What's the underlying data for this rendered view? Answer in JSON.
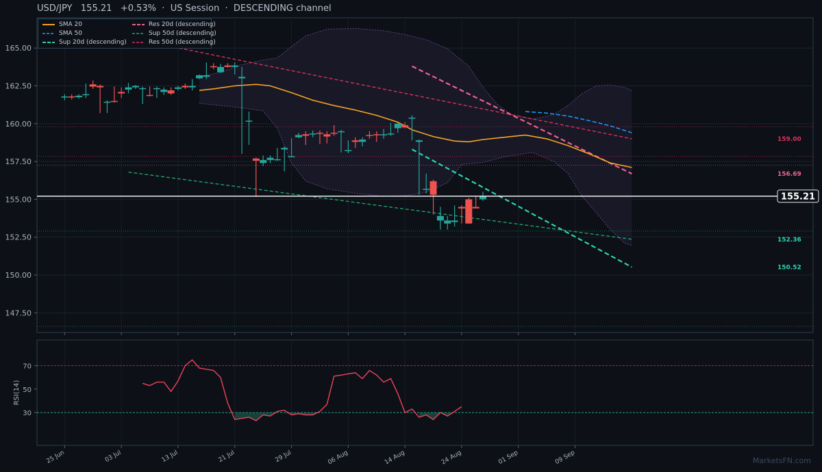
{
  "header": {
    "symbol": "USD/JPY",
    "price": "155.21",
    "change": "+0.53%",
    "session": "US Session",
    "channel": "DESCENDING channel"
  },
  "watermark": "MarketsFN.com",
  "colors": {
    "up": "#26a69a",
    "down": "#ef5350",
    "sma20": "#f5a623",
    "sma50": "#2196f3",
    "sup20": "#2ad4b0",
    "res20": "#f06292",
    "sup50": "#22a06b",
    "res50": "#d8325a",
    "rsi": "#f0435a"
  },
  "legend": [
    {
      "label": "SMA 20",
      "color": "#f5a623",
      "style": "solid"
    },
    {
      "label": "SMA 50",
      "color": "#2196f3",
      "style": "dashed"
    },
    {
      "label": "Sup 20d (descending)",
      "color": "#2ad4b0",
      "style": "dashed"
    },
    {
      "label": "Res 20d (descending)",
      "color": "#f06292",
      "style": "dashed"
    },
    {
      "label": "Sup 50d (descending)",
      "color": "#22a06b",
      "style": "dashed"
    },
    {
      "label": "Res 50d (descending)",
      "color": "#d8325a",
      "style": "dashed"
    }
  ],
  "chart_data": {
    "type": "candlestick",
    "x_start": "2024-06-24",
    "x_ticks": [
      "25 Jun",
      "03 Jul",
      "13 Jul",
      "21 Jul",
      "29 Jul",
      "06 Aug",
      "14 Aug",
      "24 Aug",
      "01 Sep",
      "09 Sep"
    ],
    "y_ticks": [
      "147.50",
      "150.00",
      "152.50",
      "155.00",
      "157.50",
      "160.00",
      "162.50",
      "165.00"
    ],
    "ylim": [
      146.2,
      167.0
    ],
    "candles": [
      {
        "x": "2024-06-25",
        "o": 161.75,
        "h": 161.95,
        "l": 161.55,
        "c": 161.8
      },
      {
        "x": "2024-06-26",
        "o": 161.8,
        "h": 161.95,
        "l": 161.6,
        "c": 161.75
      },
      {
        "x": "2024-06-27",
        "o": 161.75,
        "h": 161.95,
        "l": 161.65,
        "c": 161.85
      },
      {
        "x": "2024-06-28",
        "o": 161.9,
        "h": 162.65,
        "l": 161.7,
        "c": 161.95
      },
      {
        "x": "2024-06-29",
        "o": 162.6,
        "h": 162.85,
        "l": 162.3,
        "c": 162.45
      },
      {
        "x": "2024-06-30",
        "o": 162.5,
        "h": 162.6,
        "l": 160.7,
        "c": 162.4
      },
      {
        "x": "2024-07-01",
        "o": 161.4,
        "h": 161.55,
        "l": 160.7,
        "c": 161.45
      },
      {
        "x": "2024-07-02",
        "o": 161.5,
        "h": 162.45,
        "l": 161.4,
        "c": 161.45
      },
      {
        "x": "2024-07-03",
        "o": 162.1,
        "h": 162.4,
        "l": 161.7,
        "c": 162.0
      },
      {
        "x": "2024-07-04",
        "o": 162.25,
        "h": 162.7,
        "l": 162.0,
        "c": 162.4
      },
      {
        "x": "2024-07-05",
        "o": 162.4,
        "h": 162.55,
        "l": 162.3,
        "c": 162.5
      },
      {
        "x": "2024-07-06",
        "o": 162.35,
        "h": 162.45,
        "l": 161.3,
        "c": 162.35
      },
      {
        "x": "2024-07-07",
        "o": 161.9,
        "h": 162.45,
        "l": 161.8,
        "c": 161.85
      },
      {
        "x": "2024-07-08",
        "o": 162.3,
        "h": 162.45,
        "l": 161.7,
        "c": 162.35
      },
      {
        "x": "2024-07-09",
        "o": 162.1,
        "h": 162.4,
        "l": 161.9,
        "c": 162.25
      },
      {
        "x": "2024-07-10",
        "o": 162.2,
        "h": 162.4,
        "l": 161.9,
        "c": 162.0
      },
      {
        "x": "2024-07-11",
        "o": 162.3,
        "h": 162.5,
        "l": 162.2,
        "c": 162.4
      },
      {
        "x": "2024-07-12",
        "o": 162.5,
        "h": 162.65,
        "l": 162.3,
        "c": 162.4
      },
      {
        "x": "2024-07-13",
        "o": 162.4,
        "h": 162.95,
        "l": 162.2,
        "c": 162.5
      },
      {
        "x": "2024-07-14",
        "o": 163.0,
        "h": 163.25,
        "l": 162.95,
        "c": 163.2
      },
      {
        "x": "2024-07-15",
        "o": 163.1,
        "h": 164.05,
        "l": 162.95,
        "c": 163.2
      },
      {
        "x": "2024-07-16",
        "o": 163.8,
        "h": 164.0,
        "l": 163.6,
        "c": 163.75
      },
      {
        "x": "2024-07-17",
        "o": 163.4,
        "h": 163.95,
        "l": 163.35,
        "c": 163.75
      },
      {
        "x": "2024-07-18",
        "o": 163.85,
        "h": 164.0,
        "l": 163.7,
        "c": 163.75
      },
      {
        "x": "2024-07-19",
        "o": 163.75,
        "h": 164.05,
        "l": 163.25,
        "c": 163.85
      },
      {
        "x": "2024-07-20",
        "o": 163.0,
        "h": 163.75,
        "l": 158.0,
        "c": 163.1
      },
      {
        "x": "2024-07-21",
        "o": 160.2,
        "h": 160.8,
        "l": 158.6,
        "c": 160.2
      },
      {
        "x": "2024-07-22",
        "o": 157.7,
        "h": 157.75,
        "l": 155.15,
        "c": 157.55
      },
      {
        "x": "2024-07-23",
        "o": 157.4,
        "h": 157.9,
        "l": 157.2,
        "c": 157.6
      },
      {
        "x": "2024-07-24",
        "o": 157.6,
        "h": 157.9,
        "l": 157.4,
        "c": 157.75
      },
      {
        "x": "2024-07-25",
        "o": 157.6,
        "h": 158.4,
        "l": 157.55,
        "c": 157.65
      },
      {
        "x": "2024-07-26",
        "o": 158.3,
        "h": 158.5,
        "l": 156.85,
        "c": 158.4
      },
      {
        "x": "2024-07-27",
        "o": 157.8,
        "h": 159.05,
        "l": 157.8,
        "c": 157.85
      },
      {
        "x": "2024-07-28",
        "o": 159.1,
        "h": 159.4,
        "l": 159.05,
        "c": 159.25
      },
      {
        "x": "2024-07-29",
        "o": 159.3,
        "h": 159.5,
        "l": 158.6,
        "c": 159.2
      },
      {
        "x": "2024-07-30",
        "o": 159.3,
        "h": 159.55,
        "l": 159.1,
        "c": 159.35
      },
      {
        "x": "2024-07-31",
        "o": 159.4,
        "h": 159.55,
        "l": 158.65,
        "c": 159.35
      },
      {
        "x": "2024-08-01",
        "o": 159.3,
        "h": 159.5,
        "l": 158.7,
        "c": 159.15
      },
      {
        "x": "2024-08-02",
        "o": 159.4,
        "h": 159.9,
        "l": 159.2,
        "c": 159.35
      },
      {
        "x": "2024-08-03",
        "o": 159.5,
        "h": 159.6,
        "l": 158.1,
        "c": 159.5
      },
      {
        "x": "2024-08-04",
        "o": 158.25,
        "h": 158.9,
        "l": 158.05,
        "c": 158.25
      },
      {
        "x": "2024-08-05",
        "o": 158.9,
        "h": 159.1,
        "l": 158.4,
        "c": 158.8
      },
      {
        "x": "2024-08-06",
        "o": 158.8,
        "h": 159.1,
        "l": 158.5,
        "c": 158.95
      },
      {
        "x": "2024-08-07",
        "o": 159.25,
        "h": 159.5,
        "l": 159.0,
        "c": 159.2
      },
      {
        "x": "2024-08-08",
        "o": 159.3,
        "h": 159.5,
        "l": 158.8,
        "c": 159.25
      },
      {
        "x": "2024-08-09",
        "o": 159.25,
        "h": 159.65,
        "l": 159.0,
        "c": 159.3
      },
      {
        "x": "2024-08-10",
        "o": 159.3,
        "h": 160.05,
        "l": 159.2,
        "c": 159.35
      },
      {
        "x": "2024-08-11",
        "o": 159.7,
        "h": 160.05,
        "l": 159.4,
        "c": 160.0
      },
      {
        "x": "2024-08-12",
        "o": 159.9,
        "h": 160.1,
        "l": 159.7,
        "c": 159.75
      },
      {
        "x": "2024-08-13",
        "o": 160.4,
        "h": 160.55,
        "l": 158.9,
        "c": 160.4
      },
      {
        "x": "2024-08-14",
        "o": 158.8,
        "h": 158.95,
        "l": 155.3,
        "c": 158.9
      },
      {
        "x": "2024-08-15",
        "o": 155.65,
        "h": 156.7,
        "l": 155.4,
        "c": 155.7
      },
      {
        "x": "2024-08-16",
        "o": 156.2,
        "h": 156.3,
        "l": 154.0,
        "c": 155.3
      },
      {
        "x": "2024-08-17",
        "o": 153.6,
        "h": 154.5,
        "l": 153.0,
        "c": 153.9
      },
      {
        "x": "2024-08-18",
        "o": 153.4,
        "h": 153.9,
        "l": 153.0,
        "c": 153.6
      },
      {
        "x": "2024-08-19",
        "o": 153.5,
        "h": 154.6,
        "l": 153.2,
        "c": 153.6
      },
      {
        "x": "2024-08-20",
        "o": 154.5,
        "h": 154.6,
        "l": 153.4,
        "c": 154.4
      },
      {
        "x": "2024-08-21",
        "o": 155.0,
        "h": 155.1,
        "l": 153.4,
        "c": 153.4
      },
      {
        "x": "2024-08-22",
        "o": 154.5,
        "h": 155.2,
        "l": 154.4,
        "c": 154.4
      },
      {
        "x": "2024-08-23",
        "o": 155.0,
        "h": 155.5,
        "l": 154.9,
        "c": 155.21
      }
    ],
    "sma20": [
      [
        "2024-07-14",
        162.2
      ],
      [
        "2024-07-16",
        162.3
      ],
      [
        "2024-07-19",
        162.5
      ],
      [
        "2024-07-22",
        162.6
      ],
      [
        "2024-07-24",
        162.5
      ],
      [
        "2024-07-27",
        162.05
      ],
      [
        "2024-07-30",
        161.55
      ],
      [
        "2024-08-02",
        161.2
      ],
      [
        "2024-08-05",
        160.9
      ],
      [
        "2024-08-08",
        160.55
      ],
      [
        "2024-08-11",
        160.1
      ],
      [
        "2024-08-13",
        159.6
      ],
      [
        "2024-08-16",
        159.15
      ],
      [
        "2024-08-19",
        158.85
      ],
      [
        "2024-08-21",
        158.8
      ],
      [
        "2024-08-23",
        158.95
      ],
      [
        "2024-08-26",
        159.1
      ],
      [
        "2024-08-29",
        159.25
      ],
      [
        "2024-09-01",
        159.0
      ],
      [
        "2024-09-04",
        158.55
      ],
      [
        "2024-09-07",
        158.0
      ],
      [
        "2024-09-10",
        157.4
      ],
      [
        "2024-09-13",
        157.1
      ]
    ],
    "sma50": [
      [
        "2024-08-29",
        160.8
      ],
      [
        "2024-09-01",
        160.7
      ],
      [
        "2024-09-04",
        160.5
      ],
      [
        "2024-09-07",
        160.2
      ],
      [
        "2024-09-10",
        159.85
      ],
      [
        "2024-09-13",
        159.4
      ]
    ],
    "bollinger_upper": [
      [
        "2024-07-14",
        163.1
      ],
      [
        "2024-07-17",
        163.4
      ],
      [
        "2024-07-20",
        163.9
      ],
      [
        "2024-07-23",
        164.2
      ],
      [
        "2024-07-25",
        164.35
      ],
      [
        "2024-07-27",
        165.1
      ],
      [
        "2024-07-29",
        165.8
      ],
      [
        "2024-08-01",
        166.25
      ],
      [
        "2024-08-05",
        166.3
      ],
      [
        "2024-08-09",
        166.15
      ],
      [
        "2024-08-12",
        165.9
      ],
      [
        "2024-08-15",
        165.55
      ],
      [
        "2024-08-18",
        164.95
      ],
      [
        "2024-08-21",
        163.8
      ],
      [
        "2024-08-23",
        162.4
      ],
      [
        "2024-08-25",
        161.3
      ],
      [
        "2024-08-27",
        160.6
      ],
      [
        "2024-08-30",
        160.3
      ],
      [
        "2024-09-02",
        160.6
      ],
      [
        "2024-09-04",
        161.2
      ],
      [
        "2024-09-06",
        162.0
      ],
      [
        "2024-09-08",
        162.5
      ],
      [
        "2024-09-10",
        162.55
      ],
      [
        "2024-09-12",
        162.4
      ],
      [
        "2024-09-13",
        162.2
      ]
    ],
    "bollinger_lower": [
      [
        "2024-07-14",
        161.35
      ],
      [
        "2024-07-17",
        161.2
      ],
      [
        "2024-07-20",
        161.05
      ],
      [
        "2024-07-23",
        160.85
      ],
      [
        "2024-07-25",
        159.7
      ],
      [
        "2024-07-27",
        157.4
      ],
      [
        "2024-07-29",
        156.2
      ],
      [
        "2024-08-01",
        155.7
      ],
      [
        "2024-08-05",
        155.4
      ],
      [
        "2024-08-09",
        155.2
      ],
      [
        "2024-08-12",
        155.25
      ],
      [
        "2024-08-15",
        155.45
      ],
      [
        "2024-08-18",
        156.1
      ],
      [
        "2024-08-20",
        157.3
      ],
      [
        "2024-08-23",
        157.45
      ],
      [
        "2024-08-26",
        157.8
      ],
      [
        "2024-08-30",
        158.1
      ],
      [
        "2024-09-02",
        157.5
      ],
      [
        "2024-09-04",
        156.7
      ],
      [
        "2024-09-06",
        155.2
      ],
      [
        "2024-09-08",
        154.1
      ],
      [
        "2024-09-10",
        153.0
      ],
      [
        "2024-09-12",
        152.1
      ],
      [
        "2024-09-13",
        151.95
      ]
    ],
    "res20": [
      [
        "2024-08-13",
        163.8
      ],
      [
        "2024-09-13",
        156.69
      ]
    ],
    "sup20": [
      [
        "2024-08-13",
        158.3
      ],
      [
        "2024-09-13",
        150.52
      ]
    ],
    "res50": [
      [
        "2024-07-02",
        165.85
      ],
      [
        "2024-09-13",
        159.0
      ]
    ],
    "sup50": [
      [
        "2024-07-04",
        156.8
      ],
      [
        "2024-09-13",
        152.36
      ]
    ],
    "h_levels": [
      {
        "y": 159.8,
        "color": "#d8325a"
      },
      {
        "y": 157.85,
        "color": "#d8325a"
      },
      {
        "y": 157.25,
        "color": "#f06292"
      },
      {
        "y": 152.9,
        "color": "#22a06b"
      },
      {
        "y": 146.6,
        "color": "#22a06b"
      }
    ],
    "current_price": 155.21,
    "price_label": "155.21",
    "right_labels": [
      {
        "text": "159.00",
        "y": 159.0,
        "color": "#d8325a"
      },
      {
        "text": "156.69",
        "y": 156.69,
        "color": "#f06292"
      },
      {
        "text": "152.36",
        "y": 152.36,
        "color": "#2ad4b0"
      },
      {
        "text": "150.52",
        "y": 150.52,
        "color": "#2ad4b0"
      }
    ],
    "rsi": {
      "label": "RSI(14)",
      "ticks": [
        "30",
        "50",
        "70"
      ],
      "ylim": [
        2,
        92
      ],
      "overbought": 70,
      "oversold": 30,
      "values": [
        [
          "2024-07-06",
          55
        ],
        [
          "2024-07-07",
          53
        ],
        [
          "2024-07-08",
          56
        ],
        [
          "2024-07-09",
          56
        ],
        [
          "2024-07-10",
          48
        ],
        [
          "2024-07-11",
          57
        ],
        [
          "2024-07-12",
          70
        ],
        [
          "2024-07-13",
          75
        ],
        [
          "2024-07-14",
          68
        ],
        [
          "2024-07-15",
          67
        ],
        [
          "2024-07-16",
          66
        ],
        [
          "2024-07-17",
          60
        ],
        [
          "2024-07-18",
          38
        ],
        [
          "2024-07-19",
          24
        ],
        [
          "2024-07-20",
          25
        ],
        [
          "2024-07-21",
          26
        ],
        [
          "2024-07-22",
          23
        ],
        [
          "2024-07-23",
          28
        ],
        [
          "2024-07-24",
          27
        ],
        [
          "2024-07-25",
          31
        ],
        [
          "2024-07-26",
          32
        ],
        [
          "2024-07-27",
          28
        ],
        [
          "2024-07-28",
          29
        ],
        [
          "2024-07-29",
          28
        ],
        [
          "2024-07-30",
          28
        ],
        [
          "2024-07-31",
          31
        ],
        [
          "2024-08-01",
          37
        ],
        [
          "2024-08-02",
          61
        ],
        [
          "2024-08-03",
          62
        ],
        [
          "2024-08-04",
          63
        ],
        [
          "2024-08-05",
          64
        ],
        [
          "2024-08-06",
          59
        ],
        [
          "2024-08-07",
          66
        ],
        [
          "2024-08-08",
          62
        ],
        [
          "2024-08-09",
          56
        ],
        [
          "2024-08-10",
          59
        ],
        [
          "2024-08-11",
          46
        ],
        [
          "2024-08-12",
          30
        ],
        [
          "2024-08-13",
          33
        ],
        [
          "2024-08-14",
          26
        ],
        [
          "2024-08-15",
          28
        ],
        [
          "2024-08-16",
          24
        ],
        [
          "2024-08-17",
          30
        ],
        [
          "2024-08-18",
          27
        ],
        [
          "2024-08-19",
          31
        ],
        [
          "2024-08-20",
          35
        ]
      ]
    }
  }
}
